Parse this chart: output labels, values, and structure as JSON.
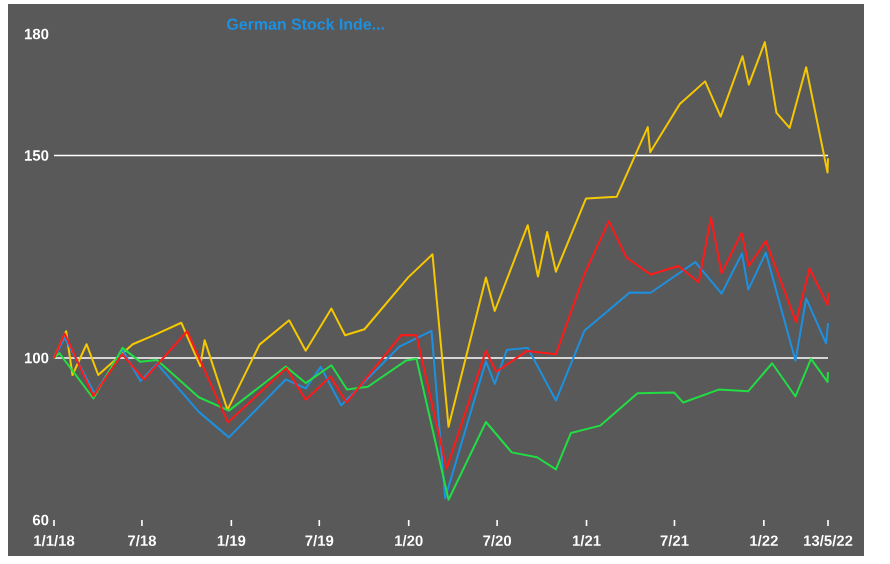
{
  "chart_data": {
    "type": "line",
    "xlim": [
      "2018-01-01",
      "2022-05-13"
    ],
    "xticks": [
      {
        "value": "2018-01-01",
        "label": "1/1/18"
      },
      {
        "value": "2018-07-01",
        "label": "7/18"
      },
      {
        "value": "2019-01-01",
        "label": "1/19"
      },
      {
        "value": "2019-07-01",
        "label": "7/19"
      },
      {
        "value": "2020-01-01",
        "label": "1/20"
      },
      {
        "value": "2020-07-01",
        "label": "7/20"
      },
      {
        "value": "2021-01-01",
        "label": "1/21"
      },
      {
        "value": "2021-07-01",
        "label": "7/21"
      },
      {
        "value": "2022-01-01",
        "label": "1/22"
      },
      {
        "value": "2022-05-13",
        "label": "13/5/22"
      }
    ],
    "ylim": [
      60,
      180
    ],
    "yticks": [
      60,
      100,
      150,
      180
    ],
    "ref_lines": [
      {
        "axis": "y",
        "value": 100,
        "color": "#ffffff"
      },
      {
        "axis": "y",
        "value": 150,
        "color": "#ffffff"
      }
    ],
    "legend": "top",
    "series": [
      {
        "color": "#f5c800",
        "x": [
          "2018-01-01",
          "2018-01-26",
          "2018-02-08",
          "2018-03-09",
          "2018-04-02",
          "2018-06-12",
          "2018-07-25",
          "2018-09-20",
          "2018-10-29",
          "2018-11-07",
          "2018-12-24",
          "2019-02-28",
          "2019-04-30",
          "2019-06-03",
          "2019-07-26",
          "2019-08-23",
          "2019-10-02",
          "2019-12-31",
          "2020-02-19",
          "2020-03-23",
          "2020-06-08",
          "2020-06-26",
          "2020-09-02",
          "2020-09-23",
          "2020-10-12",
          "2020-10-30",
          "2020-12-31",
          "2021-03-04",
          "2021-05-07",
          "2021-05-12",
          "2021-07-12",
          "2021-09-02",
          "2021-10-04",
          "2021-11-18",
          "2021-12-01",
          "2022-01-03",
          "2022-01-27",
          "2022-02-23",
          "2022-03-29",
          "2022-05-12",
          "2022-05-13"
        ],
        "values": [
          100,
          106.6,
          95.8,
          103.4,
          95.8,
          103.4,
          105.6,
          108.7,
          98,
          104.4,
          87.2,
          103.3,
          109.3,
          101.8,
          112.2,
          105.6,
          107.1,
          119.9,
          125.6,
          83,
          119.9,
          111.6,
          132.8,
          120.1,
          131.1,
          121.3,
          139.4,
          139.8,
          157,
          150.8,
          162.7,
          168.3,
          159.6,
          174.5,
          167.5,
          178,
          160.5,
          156.8,
          171.8,
          145.8,
          149.3
        ]
      },
      {
        "name": "German Stock Inde...",
        "color": "#1e90e0",
        "x": [
          "2018-01-01",
          "2018-01-23",
          "2018-03-26",
          "2018-05-22",
          "2018-06-28",
          "2018-08-01",
          "2018-10-26",
          "2018-12-27",
          "2019-04-23",
          "2019-06-03",
          "2019-07-04",
          "2019-08-15",
          "2019-12-13",
          "2020-02-17",
          "2020-03-16",
          "2020-06-08",
          "2020-06-26",
          "2020-07-21",
          "2020-09-02",
          "2020-10-30",
          "2020-12-28",
          "2021-03-31",
          "2021-05-13",
          "2021-08-13",
          "2021-10-06",
          "2021-11-17",
          "2021-11-30",
          "2022-01-05",
          "2022-03-07",
          "2022-03-29",
          "2022-05-09",
          "2022-05-13"
        ],
        "values": [
          100,
          105,
          91.2,
          102,
          94.3,
          98.6,
          86.7,
          80.4,
          94.7,
          92.5,
          97.8,
          88.3,
          102.8,
          106.7,
          65.4,
          99.2,
          93.6,
          102,
          102.5,
          89.5,
          106.8,
          116.2,
          116.1,
          123.7,
          115.9,
          125.8,
          116.9,
          126,
          99.3,
          114.7,
          103.6,
          108.6
        ]
      },
      {
        "color": "#22dd44",
        "x": [
          "2018-01-01",
          "2018-01-12",
          "2018-03-23",
          "2018-05-22",
          "2018-06-27",
          "2018-08-01",
          "2018-10-26",
          "2018-12-27",
          "2019-04-23",
          "2019-06-03",
          "2019-07-26",
          "2019-08-27",
          "2019-10-09",
          "2019-12-27",
          "2020-01-17",
          "2020-03-23",
          "2020-06-08",
          "2020-07-31",
          "2020-09-21",
          "2020-10-30",
          "2020-11-30",
          "2021-01-29",
          "2021-04-16",
          "2021-06-30",
          "2021-07-19",
          "2021-09-30",
          "2021-11-30",
          "2022-01-18",
          "2022-03-07",
          "2022-04-08",
          "2022-05-12",
          "2022-05-13"
        ],
        "values": [
          100,
          101.2,
          90,
          102.5,
          99.1,
          99.5,
          90.3,
          87,
          97.9,
          93.8,
          98.2,
          92.2,
          92.9,
          99.4,
          99.8,
          65,
          84.2,
          76.7,
          75.5,
          72.5,
          81.5,
          83.3,
          91.3,
          91.5,
          89,
          92.2,
          91.8,
          98.7,
          90.5,
          99.8,
          94.1,
          96.5
        ]
      },
      {
        "color": "#ff1a1a",
        "x": [
          "2018-01-01",
          "2018-01-23",
          "2018-03-23",
          "2018-05-21",
          "2018-07-05",
          "2018-10-02",
          "2018-12-25",
          "2019-04-24",
          "2019-06-03",
          "2019-07-24",
          "2019-08-26",
          "2019-12-17",
          "2020-01-17",
          "2020-03-19",
          "2020-06-08",
          "2020-06-29",
          "2020-08-31",
          "2020-10-30",
          "2020-12-29",
          "2021-02-16",
          "2021-03-24",
          "2021-05-13",
          "2021-07-09",
          "2021-08-20",
          "2021-09-14",
          "2021-10-06",
          "2021-11-16",
          "2021-12-01",
          "2022-01-05",
          "2022-03-08",
          "2022-04-05",
          "2022-05-12",
          "2022-05-13"
        ],
        "values": [
          100,
          106,
          90.6,
          101,
          94.7,
          106.6,
          84.1,
          97.5,
          89.7,
          95.4,
          89,
          105.7,
          105.6,
          72.7,
          101.8,
          96.6,
          101.7,
          100.9,
          121.1,
          133.8,
          124.8,
          120.6,
          122.7,
          118.7,
          134.7,
          120.9,
          130.9,
          122.7,
          128.9,
          108.9,
          122.1,
          113.1,
          116.1
        ]
      }
    ]
  }
}
